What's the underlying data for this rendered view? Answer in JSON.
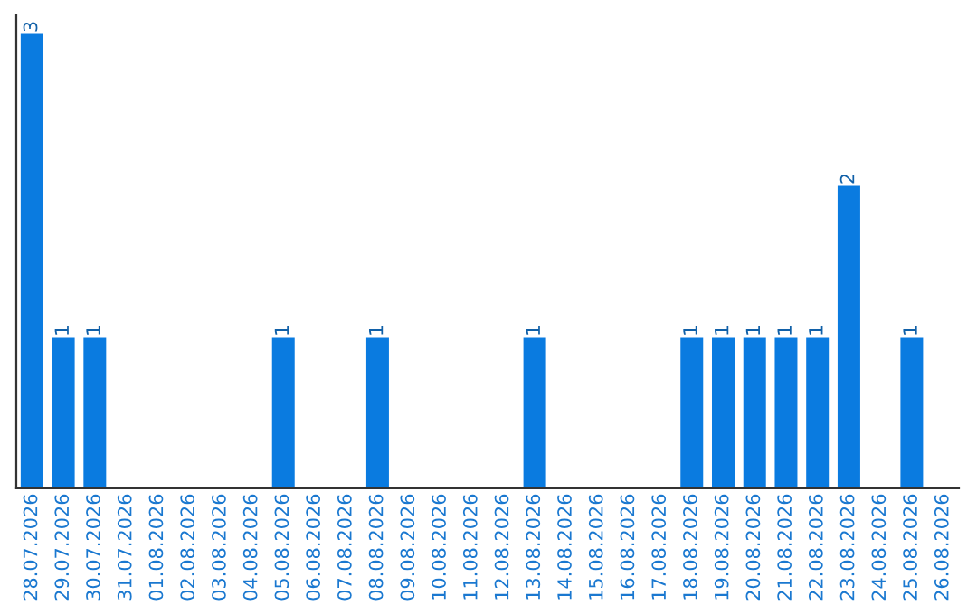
{
  "chart_data": {
    "type": "bar",
    "categories": [
      "28.07.2026",
      "29.07.2026",
      "30.07.2026",
      "31.07.2026",
      "01.08.2026",
      "02.08.2026",
      "03.08.2026",
      "04.08.2026",
      "05.08.2026",
      "06.08.2026",
      "07.08.2026",
      "08.08.2026",
      "09.08.2026",
      "10.08.2026",
      "11.08.2026",
      "12.08.2026",
      "13.08.2026",
      "14.08.2026",
      "15.08.2026",
      "16.08.2026",
      "17.08.2026",
      "18.08.2026",
      "19.08.2026",
      "20.08.2026",
      "21.08.2026",
      "22.08.2026",
      "23.08.2026",
      "24.08.2026",
      "25.08.2026",
      "26.08.2026"
    ],
    "values": [
      3,
      1,
      1,
      null,
      null,
      null,
      null,
      null,
      1,
      null,
      null,
      1,
      null,
      null,
      null,
      null,
      1,
      null,
      null,
      null,
      null,
      1,
      1,
      1,
      1,
      1,
      2,
      null,
      1,
      null
    ],
    "color": "#0a7be0",
    "data_labels": true,
    "grid": false,
    "legend": false
  }
}
